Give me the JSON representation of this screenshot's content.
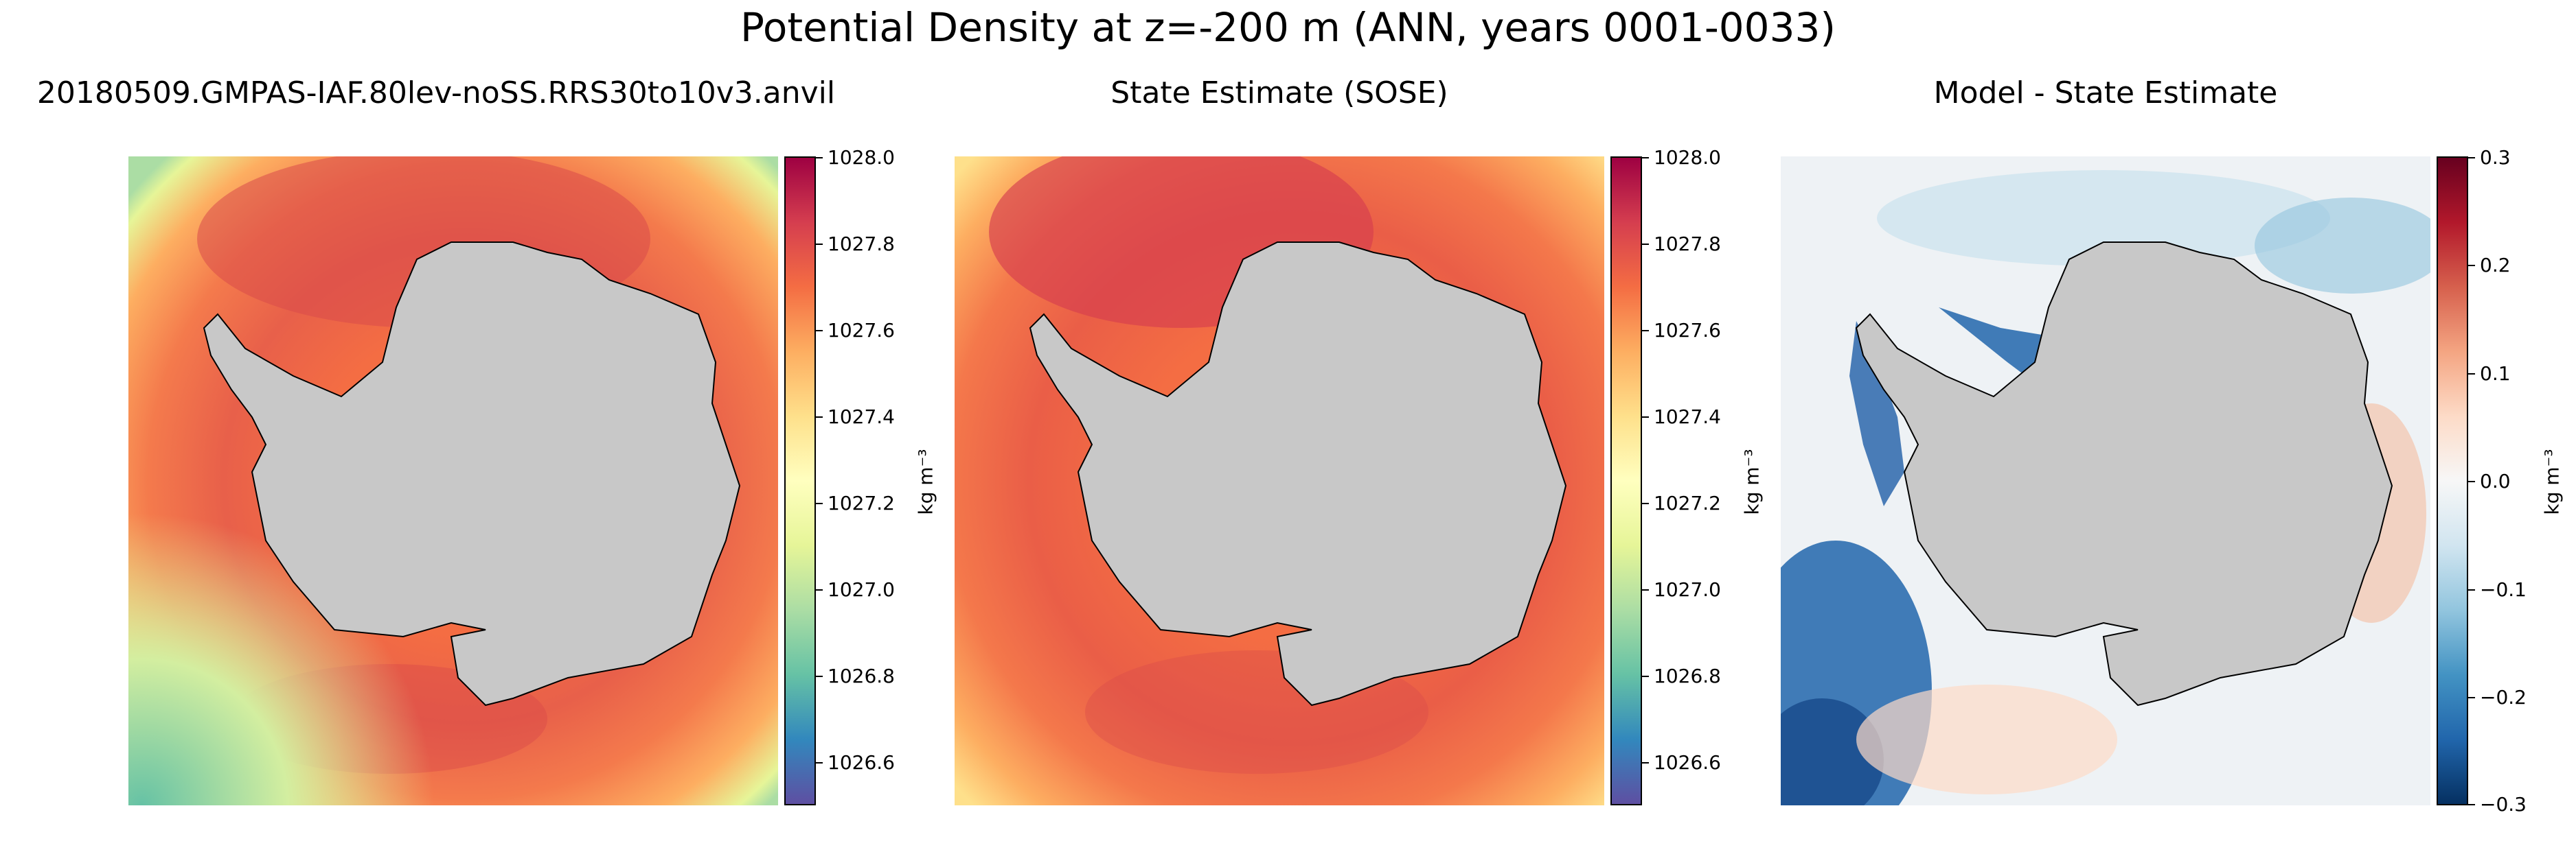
{
  "suptitle": "Potential Density at z=-200 m (ANN, years 0001-0033)",
  "chart_data": [
    {
      "type": "heatmap",
      "title": "20180509.GMPAS-IAF.80lev-noSS.RRS30to10v3.anvil",
      "colormap": "Spectral_r",
      "clim": [
        1026.5,
        1028.0
      ],
      "colorbar_ticks": [
        "1028.0",
        "1027.8",
        "1027.6",
        "1027.4",
        "1027.2",
        "1027.0",
        "1026.8",
        "1026.6"
      ],
      "colorbar_label": "kg m⁻³"
    },
    {
      "type": "heatmap",
      "title": "State Estimate (SOSE)",
      "colormap": "Spectral_r",
      "clim": [
        1026.5,
        1028.0
      ],
      "colorbar_ticks": [
        "1028.0",
        "1027.8",
        "1027.6",
        "1027.4",
        "1027.2",
        "1027.0",
        "1026.8",
        "1026.6"
      ],
      "colorbar_label": "kg m⁻³"
    },
    {
      "type": "heatmap",
      "title": "Model - State Estimate",
      "colormap": "RdBu_r",
      "clim": [
        -0.3,
        0.3
      ],
      "colorbar_ticks": [
        "0.3",
        "0.2",
        "0.1",
        "0.0",
        "−0.1",
        "−0.2",
        "−0.3"
      ],
      "colorbar_label": "kg m⁻³"
    }
  ],
  "colors": {
    "land": "#c8c8c8",
    "coast": "#000000",
    "spectral": [
      "#5e4fa2",
      "#3288bd",
      "#66c2a5",
      "#abdda4",
      "#e6f598",
      "#ffffbf",
      "#fee08b",
      "#fdae61",
      "#f46d43",
      "#d53e4f",
      "#9e0142"
    ],
    "rdbu": [
      "#053061",
      "#2166ac",
      "#4393c3",
      "#92c5de",
      "#d1e5f0",
      "#f7f7f7",
      "#fddbc7",
      "#f4a582",
      "#d6604d",
      "#b2182b",
      "#67001f"
    ]
  }
}
